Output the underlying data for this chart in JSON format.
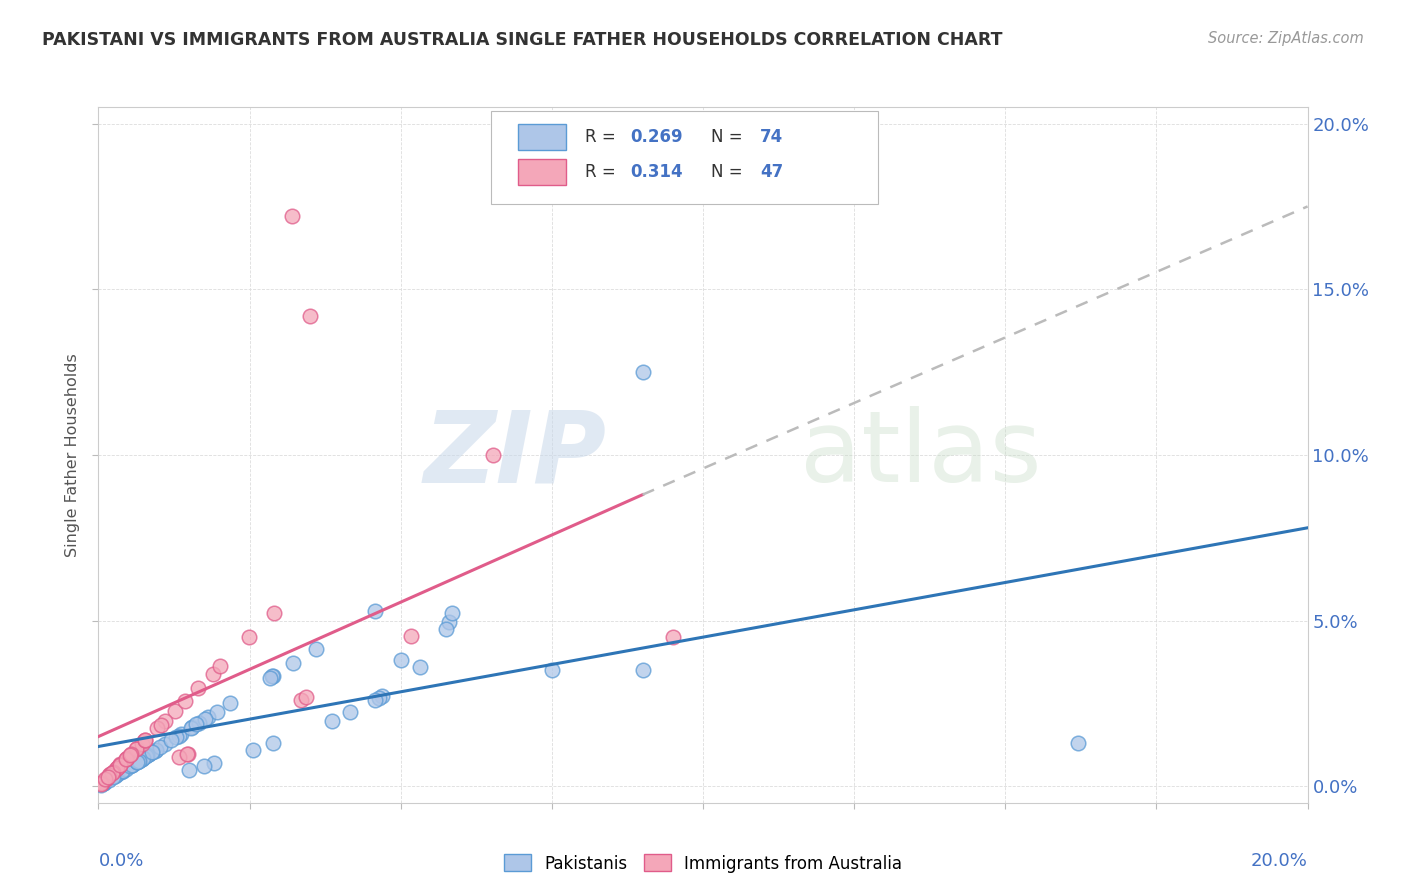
{
  "title": "PAKISTANI VS IMMIGRANTS FROM AUSTRALIA SINGLE FATHER HOUSEHOLDS CORRELATION CHART",
  "source": "Source: ZipAtlas.com",
  "ylabel": "Single Father Households",
  "yticks_labels": [
    "0.0%",
    "5.0%",
    "10.0%",
    "15.0%",
    "20.0%"
  ],
  "ytick_vals": [
    0.0,
    5.0,
    10.0,
    15.0,
    20.0
  ],
  "xlim": [
    0.0,
    20.0
  ],
  "ylim": [
    -0.5,
    20.5
  ],
  "color_blue_fill": "#aec6e8",
  "color_pink_fill": "#f4a7b9",
  "color_blue_edge": "#5b9bd5",
  "color_pink_edge": "#e05c8a",
  "color_blue_line": "#2e75b6",
  "color_pink_line": "#e05c8a",
  "color_dashed": "#bbbbbb",
  "color_grid": "#dddddd",
  "color_axis_label": "#4472c4",
  "color_title": "#333333",
  "color_source": "#999999",
  "watermark_zip": "ZIP",
  "watermark_atlas": "atlas",
  "legend_r1": "0.269",
  "legend_n1": "74",
  "legend_r2": "0.314",
  "legend_n2": "47",
  "pak_blue_line_x0": 0.0,
  "pak_blue_line_y0": 1.2,
  "pak_blue_line_x1": 20.0,
  "pak_blue_line_y1": 7.8,
  "aus_pink_line_x0": 0.0,
  "aus_pink_line_y0": 1.5,
  "aus_pink_line_x1": 9.0,
  "aus_pink_line_y1": 8.8,
  "aus_dash_line_x0": 9.0,
  "aus_dash_line_y0": 8.8,
  "aus_dash_line_x1": 20.0,
  "aus_dash_line_y1": 17.5
}
